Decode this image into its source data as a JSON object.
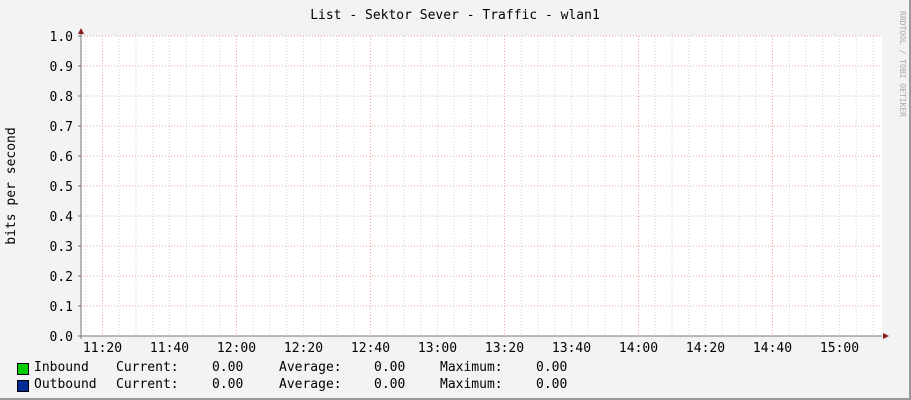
{
  "chart_data": {
    "type": "line",
    "title": "List - Sektor Sever - Traffic - wlan1",
    "ylabel": "bits per second",
    "xlabel": "",
    "ylim": [
      0,
      1.0
    ],
    "yticks": [
      "0.0",
      "0.1",
      "0.2",
      "0.3",
      "0.4",
      "0.5",
      "0.6",
      "0.7",
      "0.8",
      "0.9",
      "1.0"
    ],
    "xticks": [
      "11:20",
      "11:40",
      "12:00",
      "12:20",
      "12:40",
      "13:00",
      "13:20",
      "13:40",
      "14:00",
      "14:20",
      "14:40",
      "15:00"
    ],
    "grid": true,
    "watermark": "RRDTOOL / TOBI OETIKER",
    "series": [
      {
        "name": "Inbound",
        "color": "#00cc00",
        "values": [
          0,
          0
        ],
        "current": "0.00",
        "average": "0.00",
        "maximum": "0.00"
      },
      {
        "name": "Outbound",
        "color": "#002a97",
        "values": [
          0,
          0
        ],
        "current": "0.00",
        "average": "0.00",
        "maximum": "0.00"
      }
    ],
    "legend_labels": {
      "current": "Current:",
      "average": "Average:",
      "maximum": "Maximum:"
    }
  }
}
